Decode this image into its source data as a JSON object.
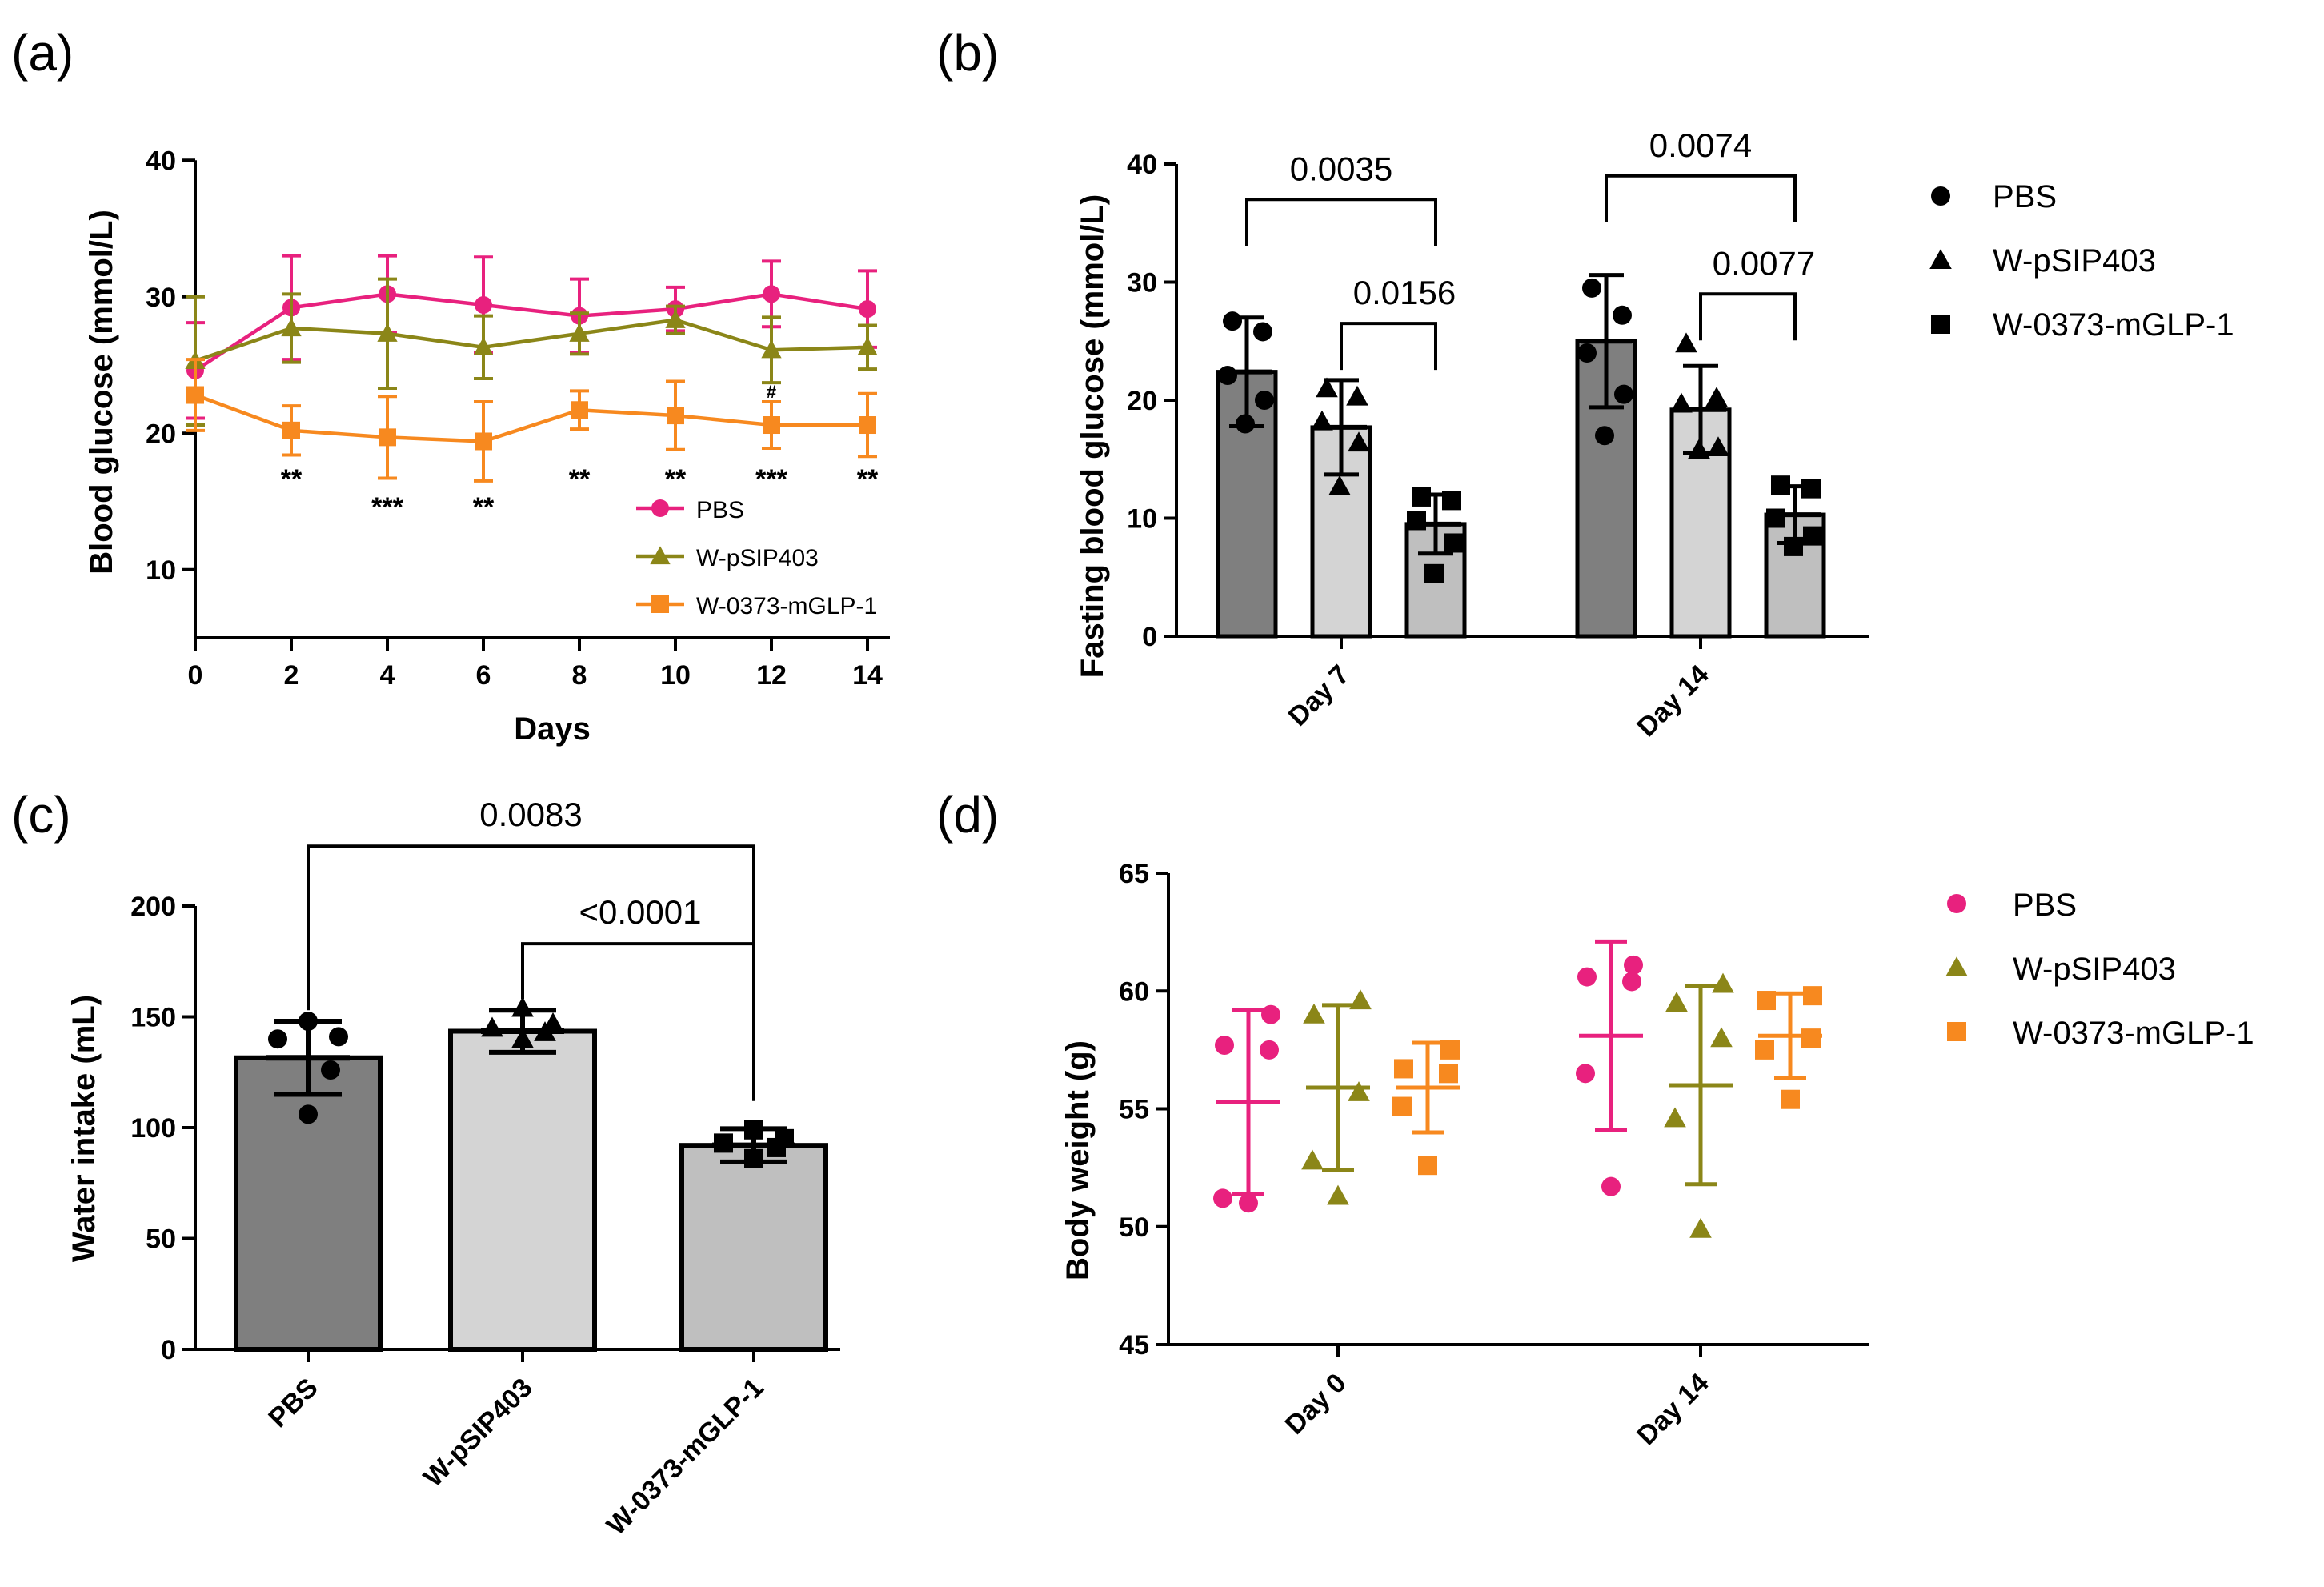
{
  "colors": {
    "pbs": "#e8217e",
    "psip": "#8b8618",
    "mglp": "#f7891f",
    "bar_dark": "#7f7f7f",
    "bar_light": "#d4d4d4",
    "bar_mid": "#bfbfbf"
  },
  "chart_data": [
    {
      "panel": "(a)",
      "type": "line",
      "xlabel": "Days",
      "ylabel": "Blood glucose (mmol/L)",
      "x": [
        0,
        2,
        4,
        6,
        8,
        10,
        12,
        14
      ],
      "xticks": [
        "0",
        "2",
        "4",
        "6",
        "8",
        "10",
        "12",
        "14"
      ],
      "ylim": [
        5,
        40
      ],
      "yticks": [
        "10",
        "20",
        "30",
        "40"
      ],
      "series": [
        {
          "name": "PBS",
          "marker": "circle",
          "color": "#e8217e",
          "values": [
            24.6,
            29.2,
            30.2,
            29.4,
            28.6,
            29.1,
            30.2,
            29.1
          ],
          "errors": [
            3.5,
            3.8,
            2.8,
            3.5,
            2.7,
            1.6,
            2.4,
            2.8
          ]
        },
        {
          "name": "W-pSIP403",
          "marker": "triangle",
          "color": "#8b8618",
          "values": [
            25.3,
            27.7,
            27.3,
            26.3,
            27.3,
            28.3,
            26.1,
            26.3
          ],
          "errors": [
            4.7,
            2.5,
            4.0,
            2.3,
            1.5,
            1.0,
            2.4,
            1.6
          ]
        },
        {
          "name": "W-0373-mGLP-1",
          "marker": "square",
          "color": "#f7891f",
          "values": [
            22.8,
            20.2,
            19.7,
            19.4,
            21.7,
            21.3,
            20.6,
            20.6
          ],
          "errors": [
            2.6,
            1.8,
            3.0,
            2.9,
            1.4,
            2.5,
            1.7,
            2.3
          ]
        }
      ],
      "annotations": [
        {
          "x": 2,
          "label": "**"
        },
        {
          "x": 4,
          "label": "***"
        },
        {
          "x": 6,
          "label": "**"
        },
        {
          "x": 8,
          "label": "**"
        },
        {
          "x": 10,
          "label": "**"
        },
        {
          "x": 12,
          "label": "***"
        },
        {
          "x": 14,
          "label": "**"
        },
        {
          "x": 12,
          "label": "#"
        }
      ],
      "legend": [
        "PBS",
        "W-pSIP403",
        "W-0373-mGLP-1"
      ],
      "legend_position": "bottom-right"
    },
    {
      "panel": "(b)",
      "type": "bar",
      "ylabel": "Fasting blood glucose (mmol/L)",
      "categories": [
        "Day 7",
        "Day 14"
      ],
      "ylim": [
        0,
        40
      ],
      "yticks": [
        "0",
        "10",
        "20",
        "30",
        "40"
      ],
      "series": [
        {
          "name": "PBS",
          "marker": "circle",
          "values": [
            22.4,
            25.0
          ],
          "errors": [
            4.6,
            5.6
          ],
          "points": [
            [
              26.7,
              25.8,
              22.1,
              20.0,
              18.0
            ],
            [
              29.5,
              27.2,
              24.0,
              20.5,
              17.0
            ]
          ]
        },
        {
          "name": "W-pSIP403",
          "marker": "triangle",
          "values": [
            17.7,
            19.2
          ],
          "errors": [
            4.0,
            3.7
          ],
          "points": [
            [
              21.0,
              20.3,
              18.2,
              16.4,
              12.7
            ],
            [
              24.8,
              20.2,
              19.7,
              16.0,
              15.8
            ]
          ]
        },
        {
          "name": "W-0373-mGLP-1",
          "marker": "square",
          "values": [
            9.5,
            10.3
          ],
          "errors": [
            2.5,
            2.4
          ],
          "points": [
            [
              11.8,
              11.5,
              9.8,
              7.9,
              5.3
            ],
            [
              12.8,
              12.5,
              10.0,
              8.5,
              7.6
            ]
          ]
        }
      ],
      "comparisons": [
        {
          "category": 0,
          "from": 0,
          "to": 2,
          "label": "0.0035",
          "y": 37.0
        },
        {
          "category": 0,
          "from": 1,
          "to": 2,
          "label": "0.0156",
          "y": 26.5
        },
        {
          "category": 1,
          "from": 0,
          "to": 2,
          "label": "0.0074",
          "y": 39.0
        },
        {
          "category": 1,
          "from": 1,
          "to": 2,
          "label": "0.0077",
          "y": 29.0
        }
      ],
      "legend": [
        "PBS",
        "W-pSIP403",
        "W-0373-mGLP-1"
      ],
      "legend_position": "right"
    },
    {
      "panel": "(c)",
      "type": "bar",
      "ylabel": "Water intake (mL)",
      "categories": [
        "PBS",
        "W-pSIP403",
        "W-0373-mGLP-1"
      ],
      "ylim": [
        0,
        200
      ],
      "yticks": [
        "0",
        "50",
        "100",
        "150",
        "200"
      ],
      "values": [
        131.5,
        143.5,
        92.0
      ],
      "errors": [
        16.5,
        9.5,
        7.5
      ],
      "points": [
        [
          148,
          141,
          140,
          126,
          106
        ],
        [
          154,
          147,
          145,
          143,
          140
        ],
        [
          99,
          95,
          93,
          91,
          86
        ]
      ],
      "comparisons": [
        {
          "from": 0,
          "to": 2,
          "label": "0.0083",
          "y": 227
        },
        {
          "from": 1,
          "to": 2,
          "label": "<0.0001",
          "y": 183
        }
      ]
    },
    {
      "panel": "(d)",
      "type": "scatter",
      "ylabel": "Body weight (g)",
      "categories": [
        "Day 0",
        "Day 14"
      ],
      "ylim": [
        45,
        65
      ],
      "yticks": [
        "45",
        "50",
        "55",
        "60",
        "65"
      ],
      "series": [
        {
          "name": "PBS",
          "marker": "circle",
          "color": "#e8217e",
          "means": [
            55.3,
            58.1
          ],
          "sd": [
            3.9,
            4.0
          ],
          "points": [
            [
              59.0,
              57.7,
              57.5,
              51.2,
              51.0
            ],
            [
              61.1,
              60.6,
              60.4,
              56.5,
              51.7
            ]
          ]
        },
        {
          "name": "W-pSIP403",
          "marker": "triangle",
          "color": "#8b8618",
          "means": [
            55.9,
            56.0
          ],
          "sd": [
            3.5,
            4.2
          ],
          "points": [
            [
              59.6,
              59.0,
              55.7,
              52.8,
              51.3
            ],
            [
              60.3,
              59.5,
              58.0,
              54.6,
              49.9
            ]
          ]
        },
        {
          "name": "W-0373-mGLP-1",
          "marker": "square",
          "color": "#f7891f",
          "means": [
            55.9,
            58.1
          ],
          "sd": [
            1.9,
            1.8
          ],
          "points": [
            [
              57.5,
              56.7,
              56.5,
              55.1,
              52.6
            ],
            [
              59.8,
              59.6,
              58.0,
              57.5,
              55.4
            ]
          ]
        }
      ],
      "legend": [
        "PBS",
        "W-pSIP403",
        "W-0373-mGLP-1"
      ],
      "legend_position": "right"
    }
  ]
}
